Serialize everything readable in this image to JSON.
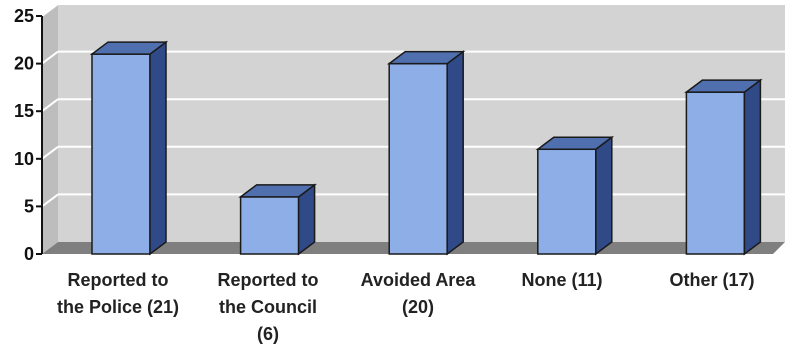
{
  "colors": {
    "wall": "#d3d3d3",
    "floor": "#7f7f7f",
    "grid": "#ffffff",
    "axis": "#111111",
    "bar_front": "#8eaee8",
    "bar_side": "#2f4a86",
    "bar_top": "#4f6faf",
    "bar_outline": "#1a1a1a"
  },
  "chart_data": {
    "type": "bar",
    "title": "",
    "xlabel": "",
    "ylabel": "",
    "ylim": [
      0,
      25
    ],
    "yticks": [
      0,
      5,
      10,
      15,
      20,
      25
    ],
    "grid": true,
    "categories": [
      "Reported to the Police (21)",
      "Reported to the Council (6)",
      "Avoided Area (20)",
      "None (11)",
      "Other (17)"
    ],
    "category_label_lines": [
      [
        "Reported to",
        "the Police (21)"
      ],
      [
        "Reported to",
        "the Council",
        "(6)"
      ],
      [
        "Avoided Area",
        "(20)"
      ],
      [
        "None (11)"
      ],
      [
        "Other (17)"
      ]
    ],
    "values": [
      21,
      6,
      20,
      11,
      17
    ]
  }
}
